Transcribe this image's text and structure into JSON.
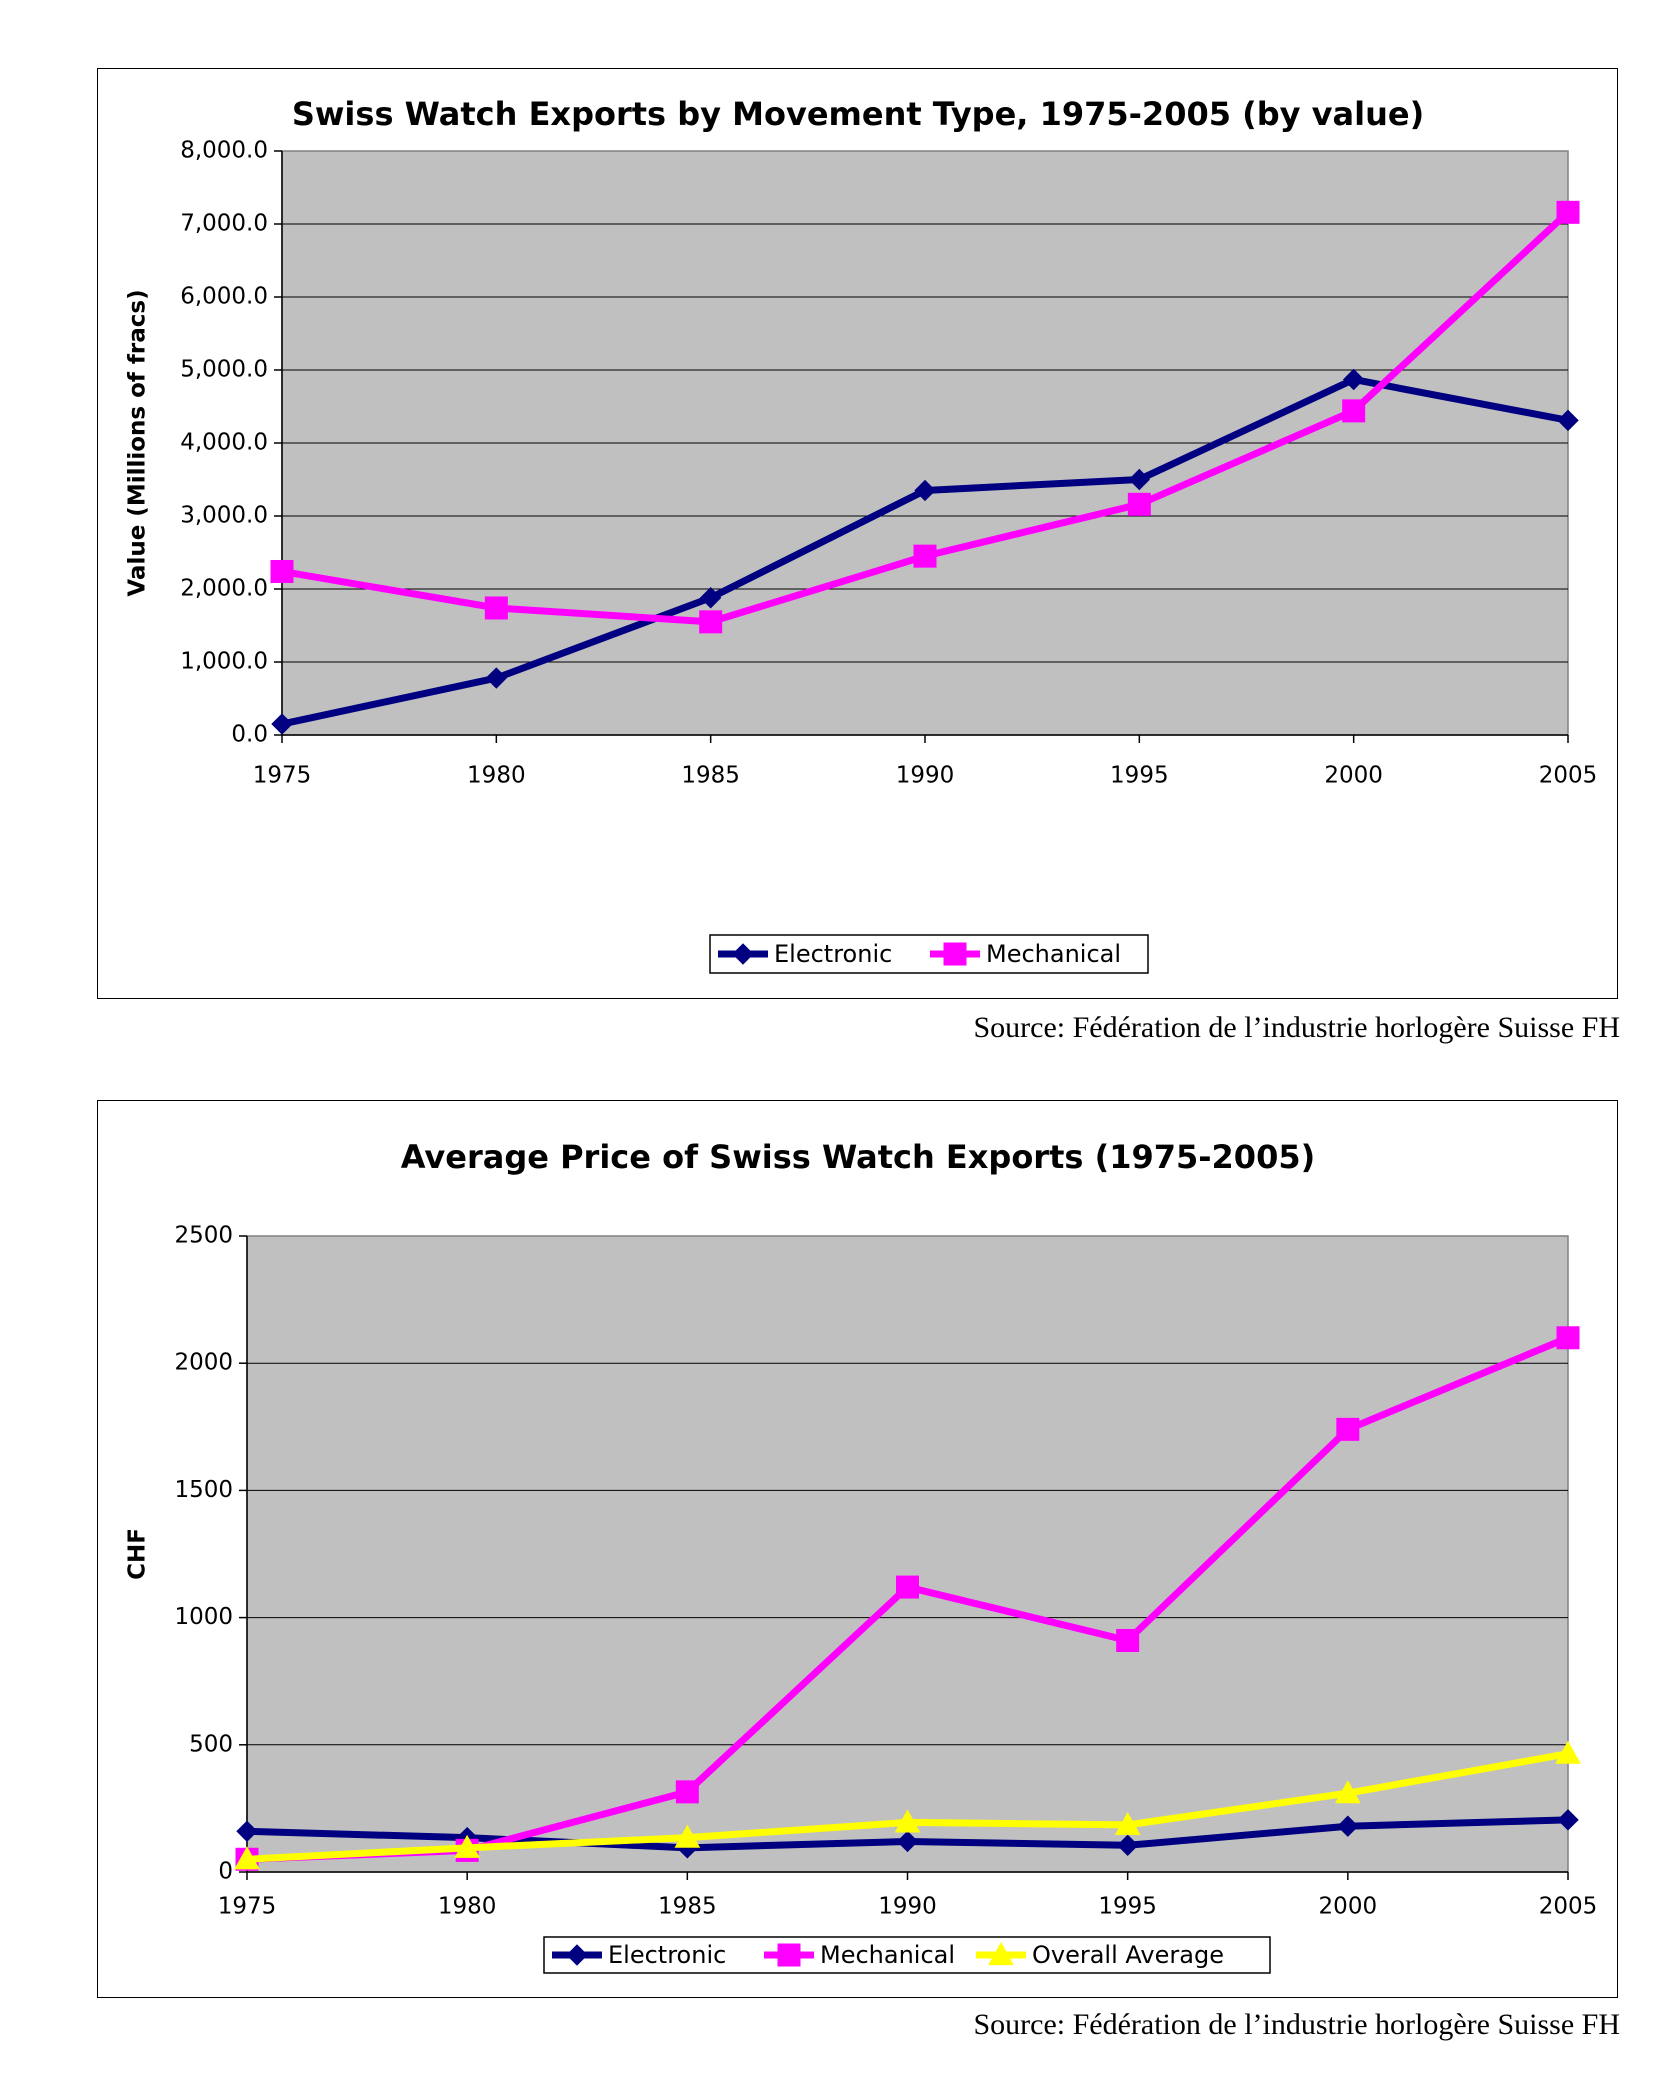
{
  "colors": {
    "plot_bg": "#C0C0C0",
    "grid": "#000000",
    "electronic": "#000080",
    "mechanical": "#FF00FF",
    "overall": "#FFFF00"
  },
  "charts": [
    {
      "source": "Source: Fédération de l’industrie horlogère Suisse FH"
    },
    {
      "source": "Source: Fédération de l’industrie horlogère Suisse FH"
    }
  ],
  "chart_data": [
    {
      "type": "line",
      "title": "Swiss Watch Exports by Movement Type, 1975-2005 (by value)",
      "xlabel": "",
      "ylabel": "Value (Millions of fracs)",
      "categories": [
        "1975",
        "1980",
        "1985",
        "1990",
        "1995",
        "2000",
        "2005"
      ],
      "ylim": [
        0,
        8000
      ],
      "yticks": [
        0,
        1000,
        2000,
        3000,
        4000,
        5000,
        6000,
        7000,
        8000
      ],
      "ytick_labels": [
        "0.0",
        "1,000.0",
        "2,000.0",
        "3,000.0",
        "4,000.0",
        "5,000.0",
        "6,000.0",
        "7,000.0",
        "8,000.0"
      ],
      "grid": true,
      "legend_position": "bottom",
      "series": [
        {
          "name": "Electronic",
          "marker": "diamond",
          "color": "#000080",
          "values": [
            150,
            780,
            1880,
            3350,
            3500,
            4870,
            4310
          ]
        },
        {
          "name": "Mechanical",
          "marker": "square",
          "color": "#FF00FF",
          "values": [
            2240,
            1740,
            1550,
            2450,
            3160,
            4440,
            7160
          ]
        }
      ]
    },
    {
      "type": "line",
      "title": "Average Price of Swiss Watch Exports (1975-2005)",
      "xlabel": "",
      "ylabel": "CHF",
      "categories": [
        "1975",
        "1980",
        "1985",
        "1990",
        "1995",
        "2000",
        "2005"
      ],
      "ylim": [
        0,
        2500
      ],
      "yticks": [
        0,
        500,
        1000,
        1500,
        2000,
        2500
      ],
      "ytick_labels": [
        "0",
        "500",
        "1000",
        "1500",
        "2000",
        "2500"
      ],
      "grid": true,
      "legend_position": "bottom",
      "series": [
        {
          "name": "Electronic",
          "marker": "diamond",
          "color": "#000080",
          "values": [
            160,
            135,
            95,
            120,
            105,
            180,
            205
          ]
        },
        {
          "name": "Mechanical",
          "marker": "square",
          "color": "#FF00FF",
          "values": [
            50,
            85,
            315,
            1120,
            910,
            1740,
            2100
          ]
        },
        {
          "name": "Overall Average",
          "marker": "triangle",
          "color": "#FFFF00",
          "values": [
            50,
            95,
            135,
            195,
            185,
            310,
            465
          ]
        }
      ]
    }
  ]
}
